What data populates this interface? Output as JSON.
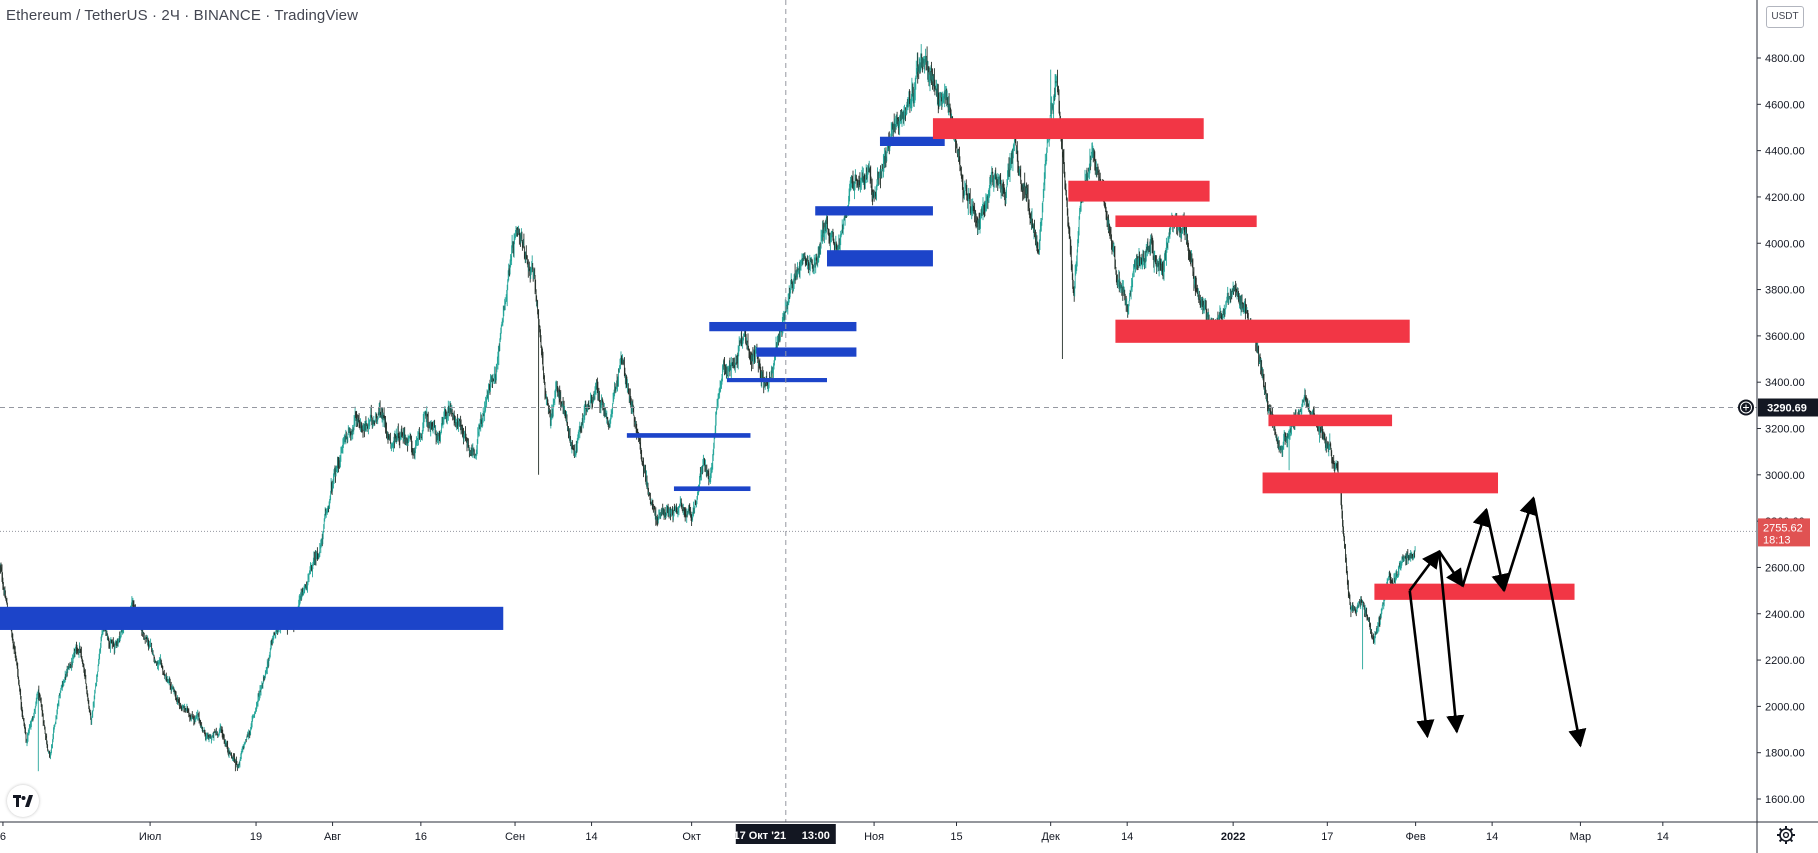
{
  "header": {
    "symbol": "Ethereum / TetherUS",
    "interval": "2Ч",
    "exchange": "BINANCE",
    "source": "TradingView",
    "separator": "·",
    "currency_button": "USDT"
  },
  "price_scale": {
    "ticks": [
      "4800.00",
      "4600.00",
      "4400.00",
      "4200.00",
      "4000.00",
      "3800.00",
      "3600.00",
      "3400.00",
      "3200.00",
      "3000.00",
      "2800.00",
      "2600.00",
      "2400.00",
      "2200.00",
      "2000.00",
      "1800.00",
      "1600.00"
    ],
    "crosshair_price": "3290.69",
    "last_price": "2755.62",
    "countdown": "18:13"
  },
  "time_scale": {
    "crosshair_date": "17 Окт '21",
    "crosshair_time": "13:00"
  },
  "colors": {
    "up": "#26a69a",
    "candle": "#26312b",
    "support_zone": "#1c44c9",
    "resistance_zone": "#f23645",
    "arrow": "#000000",
    "last_price_label": "#e05252",
    "crosshair_label": "#131722"
  },
  "icons": {
    "logo": "tradingview-logo-icon",
    "settings": "gear-icon",
    "crosshair_add": "plus-circle-icon"
  },
  "chart_data": {
    "type": "candlestick",
    "title": "Ethereum / TetherUS · 2Ч · BINANCE · TradingView",
    "ylim": [
      1500,
      4920
    ],
    "y_ticks": [
      4800,
      4600,
      4400,
      4200,
      4000,
      3800,
      3600,
      3400,
      3200,
      3000,
      2800,
      2600,
      2400,
      2200,
      2000,
      1800,
      1600
    ],
    "x_ticks": [
      "6",
      "Июл",
      "19",
      "Авг",
      "16",
      "Сен",
      "14",
      "Окт",
      "Ноя",
      "15",
      "Дек",
      "14",
      "2022",
      "17",
      "Фев",
      "14",
      "Мар",
      "14"
    ],
    "x_tick_days": [
      -25,
      0,
      18,
      31,
      46,
      62,
      75,
      92,
      123,
      137,
      153,
      166,
      184,
      200,
      215,
      228,
      243,
      257
    ],
    "x_range_days": [
      -25.5,
      273
    ],
    "price_path": [
      [
        -25.5,
        2600
      ],
      [
        -23,
        2250
      ],
      [
        -21,
        1850
      ],
      [
        -19,
        2050
      ],
      [
        -17,
        1780
      ],
      [
        -15,
        2100
      ],
      [
        -12,
        2250
      ],
      [
        -10,
        1950
      ],
      [
        -8,
        2350
      ],
      [
        -6,
        2250
      ],
      [
        -3,
        2450
      ],
      [
        -1,
        2300
      ],
      [
        2,
        2150
      ],
      [
        5,
        2000
      ],
      [
        8,
        1950
      ],
      [
        10,
        1850
      ],
      [
        12,
        1900
      ],
      [
        14,
        1780
      ],
      [
        15,
        1750
      ],
      [
        17,
        1900
      ],
      [
        19,
        2100
      ],
      [
        21,
        2300
      ],
      [
        23,
        2350
      ],
      [
        25,
        2400
      ],
      [
        27,
        2550
      ],
      [
        29,
        2700
      ],
      [
        31,
        2950
      ],
      [
        33,
        3150
      ],
      [
        35,
        3250
      ],
      [
        37,
        3200
      ],
      [
        39,
        3300
      ],
      [
        41,
        3150
      ],
      [
        43,
        3200
      ],
      [
        45,
        3100
      ],
      [
        47,
        3250
      ],
      [
        49,
        3150
      ],
      [
        51,
        3300
      ],
      [
        53,
        3200
      ],
      [
        55,
        3100
      ],
      [
        57,
        3300
      ],
      [
        59,
        3500
      ],
      [
        61,
        3900
      ],
      [
        62,
        4000
      ],
      [
        63.5,
        3950
      ],
      [
        65,
        3900
      ],
      [
        66,
        3700
      ],
      [
        67,
        3400
      ],
      [
        68,
        3200
      ],
      [
        69,
        3400
      ],
      [
        71,
        3200
      ],
      [
        72,
        3100
      ],
      [
        74,
        3300
      ],
      [
        76,
        3350
      ],
      [
        78,
        3200
      ],
      [
        80,
        3500
      ],
      [
        82,
        3300
      ],
      [
        84,
        3000
      ],
      [
        86,
        2800
      ],
      [
        88,
        2850
      ],
      [
        90,
        2900
      ],
      [
        92,
        2800
      ],
      [
        94,
        3050
      ],
      [
        95,
        2950
      ],
      [
        97,
        3400
      ],
      [
        99,
        3500
      ],
      [
        101,
        3600
      ],
      [
        103,
        3500
      ],
      [
        105,
        3400
      ],
      [
        107,
        3600
      ],
      [
        109,
        3800
      ],
      [
        111,
        4000
      ],
      [
        113,
        3900
      ],
      [
        115,
        4100
      ],
      [
        117,
        4000
      ],
      [
        119,
        4200
      ],
      [
        121,
        4300
      ],
      [
        123,
        4200
      ],
      [
        125,
        4400
      ],
      [
        127,
        4500
      ],
      [
        129,
        4600
      ],
      [
        131,
        4800
      ],
      [
        133,
        4700
      ],
      [
        135,
        4600
      ],
      [
        137,
        4400
      ],
      [
        139,
        4200
      ],
      [
        141,
        4100
      ],
      [
        143,
        4300
      ],
      [
        145,
        4200
      ],
      [
        147,
        4400
      ],
      [
        149,
        4200
      ],
      [
        151,
        4000
      ],
      [
        152.5,
        4500
      ],
      [
        154,
        4700
      ],
      [
        155,
        4400
      ],
      [
        156,
        4100
      ],
      [
        157,
        3800
      ],
      [
        158,
        4200
      ],
      [
        160,
        4350
      ],
      [
        162,
        4200
      ],
      [
        164,
        3900
      ],
      [
        166,
        3750
      ],
      [
        168,
        3900
      ],
      [
        170,
        4000
      ],
      [
        172,
        3900
      ],
      [
        174,
        4100
      ],
      [
        176,
        4050
      ],
      [
        178,
        3800
      ],
      [
        180,
        3650
      ],
      [
        182,
        3700
      ],
      [
        184,
        3800
      ],
      [
        186,
        3750
      ],
      [
        188,
        3600
      ],
      [
        190,
        3300
      ],
      [
        192,
        3100
      ],
      [
        194,
        3200
      ],
      [
        196,
        3350
      ],
      [
        198,
        3250
      ],
      [
        200,
        3150
      ],
      [
        202,
        3000
      ],
      [
        203,
        2700
      ],
      [
        204,
        2400
      ],
      [
        206,
        2450
      ],
      [
        208,
        2300
      ],
      [
        210,
        2500
      ],
      [
        212,
        2600
      ],
      [
        214,
        2650
      ],
      [
        215,
        2700
      ]
    ],
    "price_extremes": [
      [
        -19,
        1720
      ],
      [
        14.5,
        1720
      ],
      [
        62,
        4030
      ],
      [
        66,
        3000
      ],
      [
        131,
        4860
      ],
      [
        153,
        4750
      ],
      [
        155,
        3500
      ],
      [
        193.5,
        3020
      ],
      [
        206,
        2160
      ],
      [
        215,
        2800
      ]
    ],
    "zones_support": [
      {
        "from": -25.5,
        "to": 60,
        "low": 2330,
        "high": 2430
      },
      {
        "from": 81,
        "to": 102,
        "low": 3160,
        "high": 3180
      },
      {
        "from": 89,
        "to": 102,
        "low": 2930,
        "high": 2950
      },
      {
        "from": 95,
        "to": 120,
        "low": 3620,
        "high": 3660
      },
      {
        "from": 103,
        "to": 120,
        "low": 3510,
        "high": 3550
      },
      {
        "from": 98,
        "to": 115,
        "low": 3400,
        "high": 3418
      },
      {
        "from": 115,
        "to": 133,
        "low": 3900,
        "high": 3970
      },
      {
        "from": 113,
        "to": 133,
        "low": 4120,
        "high": 4160
      },
      {
        "from": 124,
        "to": 135,
        "low": 4420,
        "high": 4460
      }
    ],
    "zones_resistance": [
      {
        "from": 133,
        "to": 179,
        "low": 4450,
        "high": 4540
      },
      {
        "from": 156,
        "to": 180,
        "low": 4180,
        "high": 4270
      },
      {
        "from": 164,
        "to": 188,
        "low": 4070,
        "high": 4120
      },
      {
        "from": 164,
        "to": 214,
        "low": 3570,
        "high": 3670
      },
      {
        "from": 190,
        "to": 211,
        "low": 3210,
        "high": 3260
      },
      {
        "from": 189,
        "to": 229,
        "low": 2920,
        "high": 3010
      },
      {
        "from": 208,
        "to": 242,
        "low": 2460,
        "high": 2530
      }
    ],
    "projection_path": [
      [
        214,
        2500
      ],
      [
        219,
        2670
      ],
      [
        223,
        2520
      ],
      [
        227,
        2850
      ],
      [
        230,
        2500
      ],
      [
        235,
        2900
      ],
      [
        243,
        1830
      ]
    ],
    "projection_arrows": [
      [
        [
          214,
          2500
        ],
        [
          217,
          1870
        ]
      ],
      [
        [
          219,
          2670
        ],
        [
          222,
          1890
        ]
      ]
    ],
    "horizontal_lines": [
      {
        "price": 3290.69,
        "style": "dashed",
        "label": "crosshair"
      },
      {
        "price": 2755.62,
        "style": "dotted",
        "label": "last"
      }
    ],
    "crosshair_day": 108
  }
}
